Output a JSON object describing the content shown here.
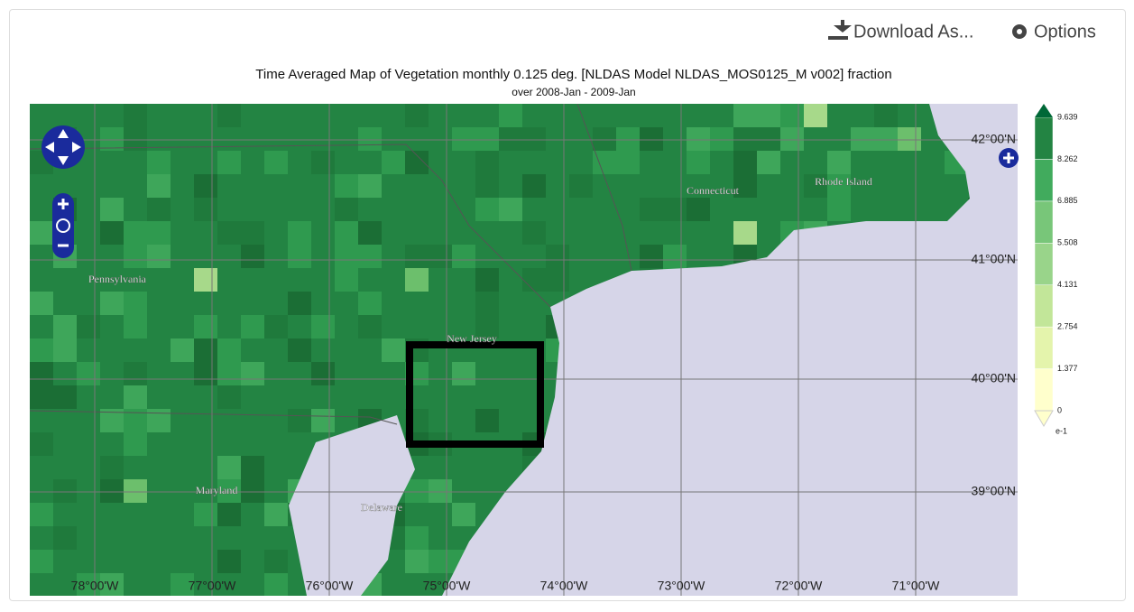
{
  "header": {
    "download": "Download As...",
    "options": "Options"
  },
  "title": "Time Averaged Map of Vegetation monthly 0.125 deg. [NLDAS Model NLDAS_MOS0125_M v002] fraction",
  "subtitle": "over 2008-Jan - 2009-Jan",
  "map": {
    "lat_labels": [
      "42°00'N",
      "41°00'N",
      "40°00'N",
      "39°00'N"
    ],
    "lon_labels": [
      "78°00'W",
      "77°00'W",
      "76°00'W",
      "75°00'W",
      "74°00'W",
      "73°00'W",
      "72°00'W",
      "71°00'W"
    ],
    "place_labels": [
      "Pennsylvania",
      "Connecticut",
      "Rhode Island",
      "New Jersey",
      "Maryland",
      "Delaware"
    ]
  },
  "legend": {
    "ticks": [
      "0",
      "1.377",
      "2.754",
      "4.131",
      "5.508",
      "6.885",
      "8.262",
      "9.639"
    ],
    "unit": "e-1"
  }
}
